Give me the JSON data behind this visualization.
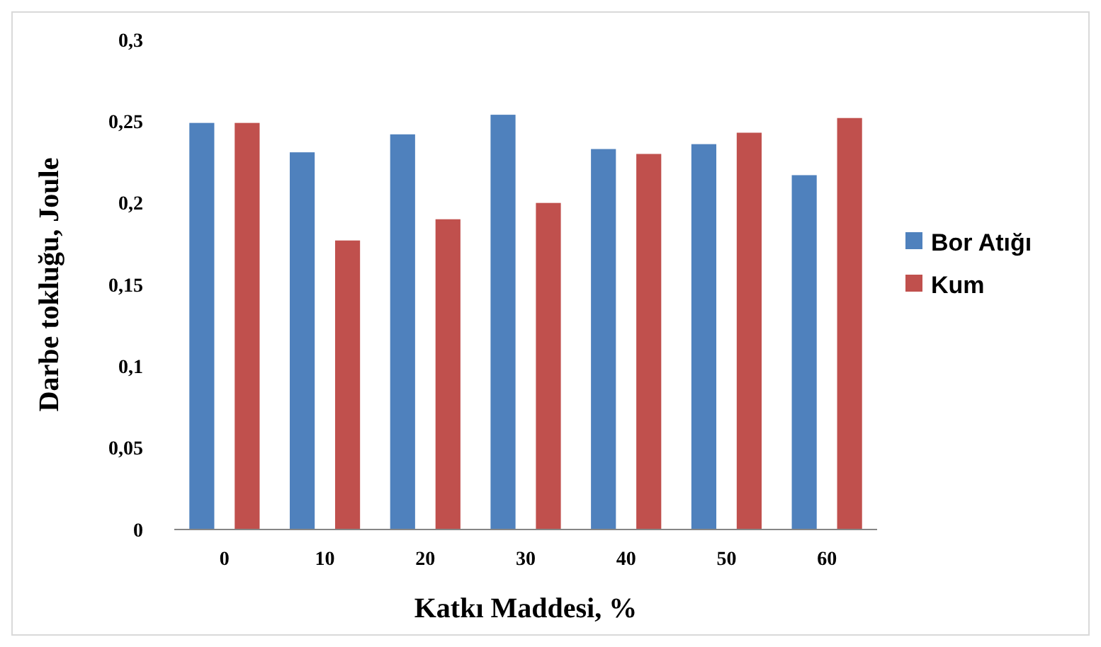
{
  "chart_data": {
    "type": "bar",
    "xlabel": "Katkı Maddesi, %",
    "ylabel": "Darbe tokluğu, Joule",
    "categories": [
      "0",
      "10",
      "20",
      "30",
      "40",
      "50",
      "60"
    ],
    "series": [
      {
        "name": "Bor Atığı",
        "color": "#4f81bd",
        "values": [
          0.249,
          0.231,
          0.242,
          0.254,
          0.233,
          0.236,
          0.217
        ]
      },
      {
        "name": "Kum",
        "color": "#c0504d",
        "values": [
          0.249,
          0.177,
          0.19,
          0.2,
          0.23,
          0.243,
          0.252
        ]
      }
    ],
    "ylim": [
      0,
      0.3
    ],
    "yticks": [
      {
        "value": 0,
        "label": "0"
      },
      {
        "value": 0.05,
        "label": "0,05"
      },
      {
        "value": 0.1,
        "label": "0,1"
      },
      {
        "value": 0.15,
        "label": "0,15"
      },
      {
        "value": 0.2,
        "label": "0,2"
      },
      {
        "value": 0.25,
        "label": "0,25"
      },
      {
        "value": 0.3,
        "label": "0,3"
      }
    ],
    "grid": false,
    "legend": "right"
  }
}
